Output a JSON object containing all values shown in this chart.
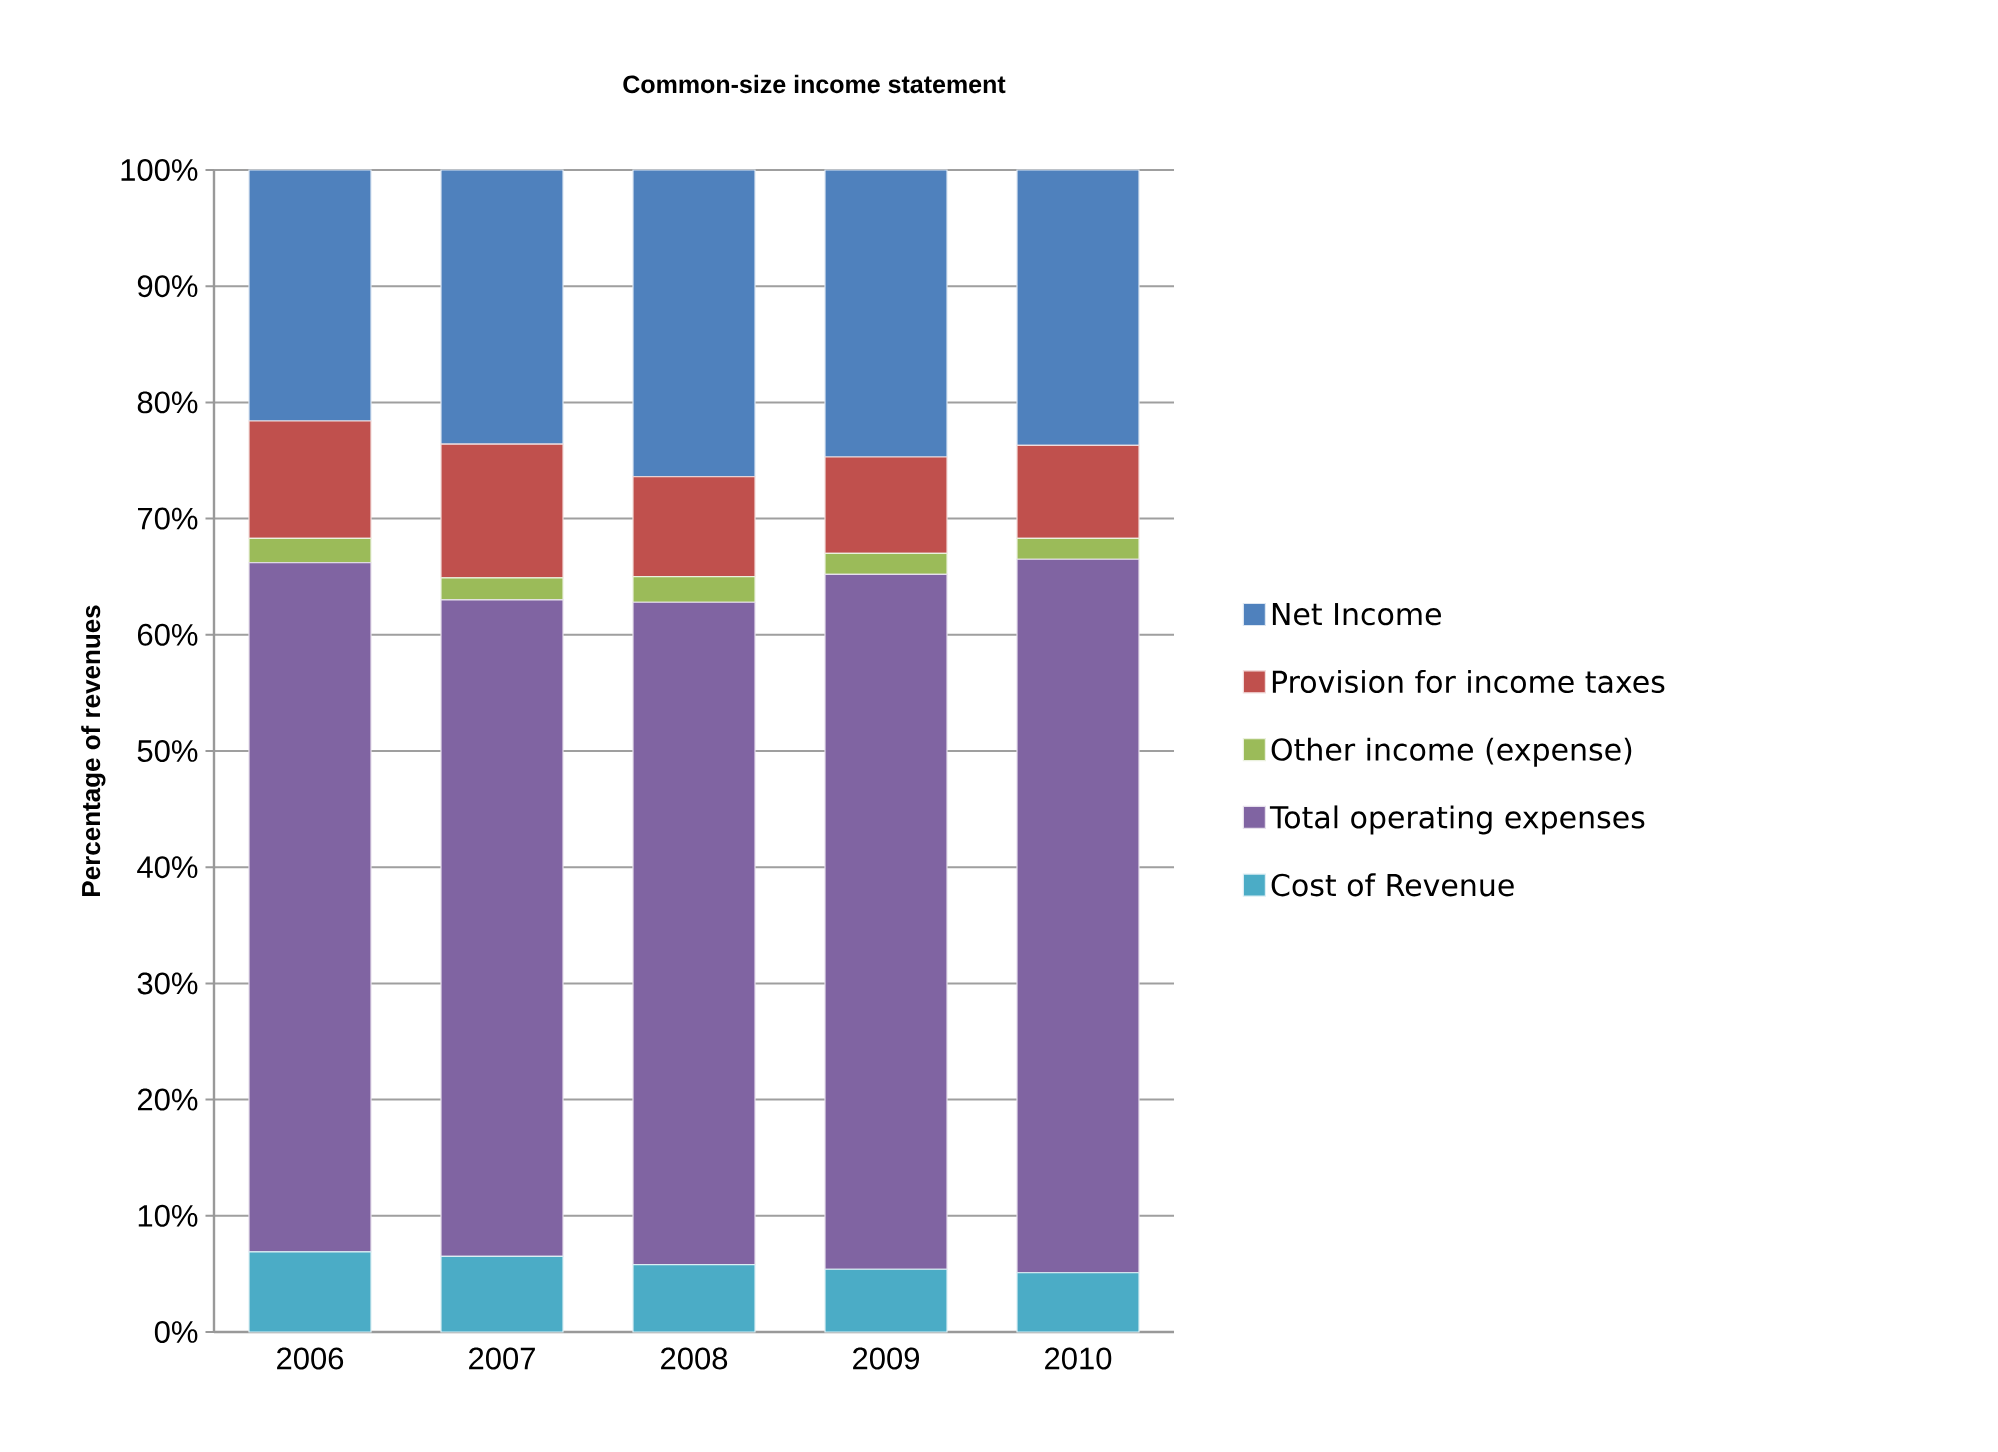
{
  "chart_data": {
    "type": "bar",
    "stacked": true,
    "title": "Common-size income statement",
    "ylabel": "Percentage of revenues",
    "categories": [
      "2006",
      "2007",
      "2008",
      "2009",
      "2010"
    ],
    "series": [
      {
        "name": "Cost of Revenue",
        "color": "#4bacc6",
        "values": [
          6.9,
          6.5,
          5.8,
          5.4,
          5.1
        ]
      },
      {
        "name": "Total operating expenses",
        "color": "#8064a2",
        "values": [
          59.3,
          56.5,
          57.0,
          59.8,
          61.4
        ]
      },
      {
        "name": "Other income (expense)",
        "color": "#9bbb59",
        "values": [
          2.1,
          1.9,
          2.2,
          1.8,
          1.8
        ]
      },
      {
        "name": "Provision for income taxes",
        "color": "#c0504d",
        "values": [
          10.1,
          11.5,
          8.6,
          8.3,
          8.0
        ]
      },
      {
        "name": "Net Income",
        "color": "#4f81bd",
        "values": [
          21.6,
          23.6,
          26.4,
          24.7,
          23.7
        ]
      }
    ],
    "ylim": [
      0,
      100
    ],
    "yticks": [
      {
        "value": 0,
        "label": "0%"
      },
      {
        "value": 10,
        "label": "10%"
      },
      {
        "value": 20,
        "label": "20%"
      },
      {
        "value": 30,
        "label": "30%"
      },
      {
        "value": 40,
        "label": "40%"
      },
      {
        "value": 50,
        "label": "50%"
      },
      {
        "value": 60,
        "label": "60%"
      },
      {
        "value": 70,
        "label": "70%"
      },
      {
        "value": 80,
        "label": "80%"
      },
      {
        "value": 90,
        "label": "90%"
      },
      {
        "value": 100,
        "label": "100%"
      }
    ],
    "grid": "y",
    "legend": "right"
  }
}
